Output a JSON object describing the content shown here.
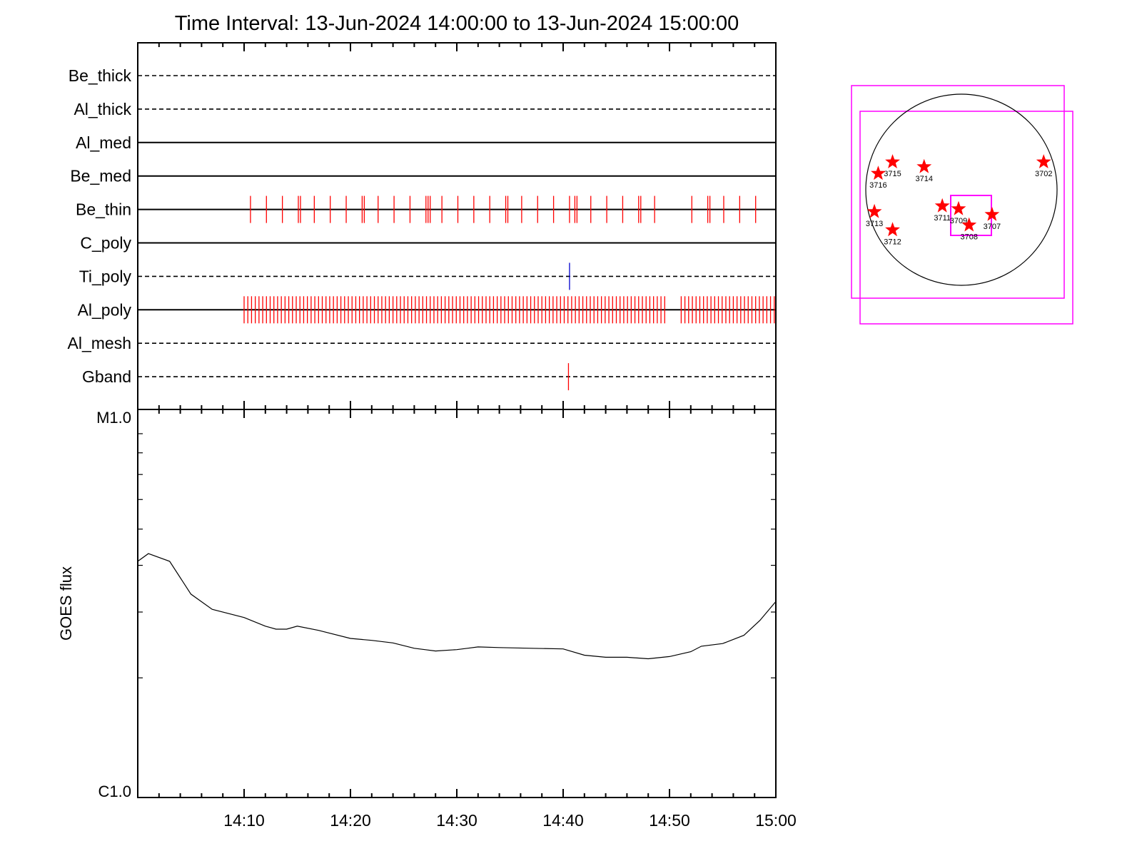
{
  "chart_data": [
    {
      "type": "event-raster",
      "title": "Time Interval: 13-Jun-2024 14:00:00 to 13-Jun-2024 15:00:00",
      "time_range": [
        "14:00",
        "15:00"
      ],
      "x_unit": "minutes after 14:00",
      "channels": [
        {
          "name": "Be_thick",
          "line_style": "dashed",
          "events": [],
          "event_color": "#ff0000"
        },
        {
          "name": "Al_thick",
          "line_style": "dashed",
          "events": [],
          "event_color": "#ff0000"
        },
        {
          "name": "Al_med",
          "line_style": "solid",
          "events": [],
          "event_color": "#ff0000"
        },
        {
          "name": "Be_med",
          "line_style": "solid",
          "events": [],
          "event_color": "#ff0000"
        },
        {
          "name": "Be_thin",
          "line_style": "solid",
          "event_color": "#ff0000",
          "events": [
            10.6,
            12.1,
            13.6,
            15.1,
            15.3,
            16.6,
            18.1,
            19.6,
            21.1,
            21.3,
            22.6,
            24.1,
            25.6,
            27.1,
            27.3,
            27.5,
            28.6,
            30.1,
            31.6,
            33.1,
            34.6,
            34.8,
            36.1,
            37.6,
            39.1,
            40.6,
            41.1,
            41.3,
            42.6,
            44.1,
            45.6,
            47.1,
            47.3,
            48.6,
            52.1,
            53.6,
            53.8,
            55.1,
            56.6,
            58.1
          ]
        },
        {
          "name": "C_poly",
          "line_style": "solid",
          "events": [],
          "event_color": "#ff0000"
        },
        {
          "name": "Ti_poly",
          "line_style": "dashed",
          "events": [
            40.6
          ],
          "event_color": "#0000cc"
        },
        {
          "name": "Al_poly",
          "line_style": "solid",
          "event_color": "#ff0000",
          "events_start": 10.0,
          "events_end": 49.6,
          "events_step": 0.35,
          "events2_start": 51.1,
          "events2_end": 59.9,
          "events2_step": 0.35
        },
        {
          "name": "Al_mesh",
          "line_style": "dashed",
          "events": [],
          "event_color": "#ff0000"
        },
        {
          "name": "Gband",
          "line_style": "dashed",
          "events": [
            40.5
          ],
          "event_color": "#ff0000"
        }
      ]
    },
    {
      "type": "line",
      "ylabel": "GOES flux",
      "y_ticks": [
        "M1.0",
        "C1.0"
      ],
      "y_scale": "log",
      "x_ticks": [
        "14:10",
        "14:20",
        "14:30",
        "14:40",
        "14:50",
        "15:00"
      ],
      "x": [
        0,
        1,
        3,
        5,
        7,
        10,
        12,
        13,
        14,
        15,
        17,
        20,
        22,
        24,
        26,
        27,
        28,
        30,
        31,
        32,
        34,
        37,
        40,
        42,
        44,
        46,
        48,
        50,
        52,
        53,
        55,
        57,
        58.5,
        60
      ],
      "y": [
        4.1,
        4.3,
        4.1,
        3.35,
        3.05,
        2.9,
        2.75,
        2.7,
        2.7,
        2.75,
        2.68,
        2.55,
        2.52,
        2.48,
        2.4,
        2.38,
        2.36,
        2.38,
        2.4,
        2.42,
        2.41,
        2.4,
        2.39,
        2.3,
        2.27,
        2.27,
        2.25,
        2.28,
        2.35,
        2.43,
        2.47,
        2.6,
        2.85,
        3.2
      ],
      "series_color": "#000000"
    },
    {
      "type": "scatter",
      "description_type": "solar-disk-map",
      "disk_color": "#000000",
      "box_color": "#ff00ff",
      "star_color": "#ff0000",
      "points": [
        {
          "label": "3715",
          "x": -0.72,
          "y": 0.29
        },
        {
          "label": "3716",
          "x": -0.87,
          "y": 0.17
        },
        {
          "label": "3714",
          "x": -0.39,
          "y": 0.24
        },
        {
          "label": "3702",
          "x": 0.86,
          "y": 0.29
        },
        {
          "label": "3713",
          "x": -0.91,
          "y": -0.23
        },
        {
          "label": "3712",
          "x": -0.72,
          "y": -0.42
        },
        {
          "label": "3711",
          "x": -0.2,
          "y": -0.17
        },
        {
          "label": "3709",
          "x": -0.03,
          "y": -0.2
        },
        {
          "label": "3708",
          "x": 0.08,
          "y": -0.37
        },
        {
          "label": "3707",
          "x": 0.32,
          "y": -0.26
        }
      ]
    }
  ]
}
